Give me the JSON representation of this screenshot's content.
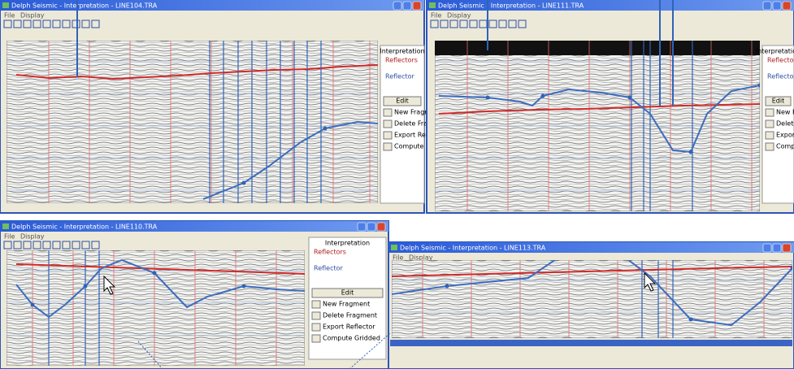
{
  "windows": [
    {
      "title": "Delph Seismic - Interpretation - LINE104.TRA",
      "menu": [
        "File",
        "Display"
      ],
      "panel": {
        "heading": "Interpretation",
        "groups": [
          "Reflectors",
          "Reflector"
        ],
        "buttons": [
          "Edit",
          "New Fragment",
          "Delete Fragment",
          "Export Reflector",
          "Compute Gridded"
        ]
      }
    },
    {
      "title": "Delph Seismic - Interpretation - LINE111.TRA",
      "menu": [
        "File",
        "Display"
      ],
      "panel": {
        "heading": "Interpretation",
        "groups": [
          "Reflectors",
          "Reflector"
        ],
        "buttons": [
          "Edit",
          "New Fragment",
          "Delete Fragment",
          "Export Reflector",
          "Compute Gridded"
        ]
      }
    },
    {
      "title": "Delph Seismic - Interpretation - LINE110.TRA",
      "menu": [
        "File",
        "Display"
      ],
      "panel": {
        "heading": "Interpretation",
        "groups": [
          "Reflectors",
          "Reflector"
        ],
        "buttons": [
          "Edit",
          "New Fragment",
          "Delete Fragment",
          "Export Reflector",
          "Compute Gridded"
        ]
      }
    },
    {
      "title": "Delph Seismic - Interpretation - LINE113.TRA",
      "menu": [
        "File",
        "Display"
      ]
    }
  ]
}
